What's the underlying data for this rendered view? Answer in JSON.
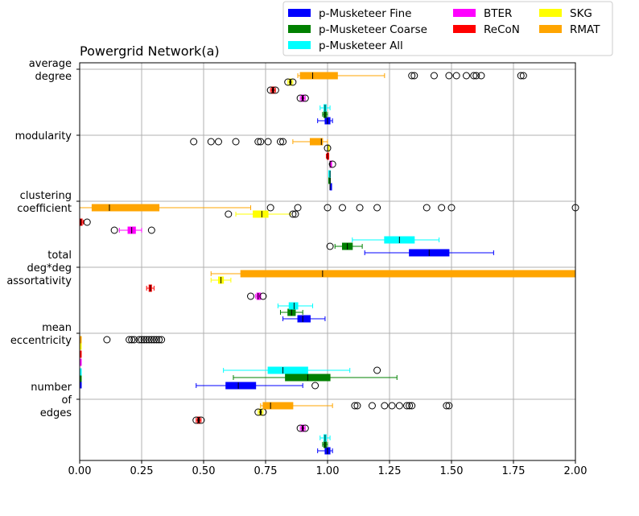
{
  "chart_data": {
    "type": "boxplot",
    "title": "Powergrid Network(a)",
    "xlabel": "",
    "ylabel": "",
    "xlim": [
      0.0,
      2.0
    ],
    "xticks": [
      "0.00",
      "0.25",
      "0.50",
      "0.75",
      "1.00",
      "1.25",
      "1.50",
      "1.75",
      "2.00"
    ],
    "grid": true,
    "legend_position": "top-right, outside above plot",
    "series": [
      {
        "name": "p-Musketeer Fine",
        "color": "#0000ff"
      },
      {
        "name": "p-Musketeer Coarse",
        "color": "#008000"
      },
      {
        "name": "p-Musketeer All",
        "color": "#00ffff"
      },
      {
        "name": "BTER",
        "color": "#ff00ff"
      },
      {
        "name": "ReCoN",
        "color": "#ff0000"
      },
      {
        "name": "SKG",
        "color": "#ffff00"
      },
      {
        "name": "RMAT",
        "color": "#ffa500"
      }
    ],
    "groups": [
      {
        "label": [
          "average",
          "degree"
        ],
        "boxes": [
          {
            "series": "p-Musketeer Fine",
            "whislo": 0.96,
            "q1": 0.99,
            "med": 1.0,
            "q3": 1.01,
            "whishi": 1.02,
            "fliers": []
          },
          {
            "series": "p-Musketeer Coarse",
            "whislo": 0.98,
            "q1": 0.985,
            "med": 0.99,
            "q3": 0.995,
            "whishi": 1.0,
            "fliers": []
          },
          {
            "series": "p-Musketeer All",
            "whislo": 0.97,
            "q1": 0.985,
            "med": 0.99,
            "q3": 0.995,
            "whishi": 1.01,
            "fliers": []
          },
          {
            "series": "BTER",
            "whislo": 0.89,
            "q1": 0.895,
            "med": 0.9,
            "q3": 0.905,
            "whishi": 0.91,
            "fliers": [
              0.89,
              0.91
            ]
          },
          {
            "series": "ReCoN",
            "whislo": 0.77,
            "q1": 0.775,
            "med": 0.78,
            "q3": 0.785,
            "whishi": 0.79,
            "fliers": [
              0.77,
              0.79
            ]
          },
          {
            "series": "SKG",
            "whislo": 0.84,
            "q1": 0.845,
            "med": 0.85,
            "q3": 0.855,
            "whishi": 0.86,
            "fliers": [
              0.84,
              0.86
            ]
          },
          {
            "series": "RMAT",
            "whislo": 0.88,
            "q1": 0.89,
            "med": 0.94,
            "q3": 1.04,
            "whishi": 1.23,
            "fliers": [
              1.34,
              1.35,
              1.43,
              1.49,
              1.52,
              1.56,
              1.59,
              1.6,
              1.62,
              1.78,
              1.79
            ]
          }
        ]
      },
      {
        "label": [
          "modularity"
        ],
        "boxes": [
          {
            "series": "p-Musketeer Fine",
            "whislo": 1.01,
            "q1": 1.01,
            "med": 1.01,
            "q3": 1.015,
            "whishi": 1.015,
            "fliers": []
          },
          {
            "series": "p-Musketeer Coarse",
            "whislo": 1.005,
            "q1": 1.005,
            "med": 1.01,
            "q3": 1.01,
            "whishi": 1.01,
            "fliers": []
          },
          {
            "series": "p-Musketeer All",
            "whislo": 1.005,
            "q1": 1.005,
            "med": 1.01,
            "q3": 1.01,
            "whishi": 1.01,
            "fliers": []
          },
          {
            "series": "BTER",
            "whislo": 1.01,
            "q1": 1.01,
            "med": 1.01,
            "q3": 1.015,
            "whishi": 1.015,
            "fliers": [
              1.02
            ]
          },
          {
            "series": "ReCoN",
            "whislo": 0.995,
            "q1": 0.998,
            "med": 1.0,
            "q3": 1.002,
            "whishi": 1.005,
            "fliers": []
          },
          {
            "series": "SKG",
            "whislo": 1.0,
            "q1": 1.0,
            "med": 1.0,
            "q3": 1.0,
            "whishi": 1.0,
            "fliers": [
              1.0
            ]
          },
          {
            "series": "RMAT",
            "whislo": 0.86,
            "q1": 0.93,
            "med": 0.975,
            "q3": 0.98,
            "whishi": 1.0,
            "fliers": [
              0.46,
              0.53,
              0.56,
              0.63,
              0.72,
              0.73,
              0.76,
              0.81,
              0.82
            ]
          }
        ]
      },
      {
        "label": [
          "clustering",
          "coefficient"
        ],
        "boxes": [
          {
            "series": "p-Musketeer Fine",
            "whislo": 1.15,
            "q1": 1.33,
            "med": 1.41,
            "q3": 1.49,
            "whishi": 1.67,
            "fliers": []
          },
          {
            "series": "p-Musketeer Coarse",
            "whislo": 1.03,
            "q1": 1.06,
            "med": 1.08,
            "q3": 1.1,
            "whishi": 1.14,
            "fliers": [
              1.01
            ]
          },
          {
            "series": "p-Musketeer All",
            "whislo": 1.1,
            "q1": 1.23,
            "med": 1.29,
            "q3": 1.35,
            "whishi": 1.45,
            "fliers": []
          },
          {
            "series": "BTER",
            "whislo": 0.16,
            "q1": 0.195,
            "med": 0.21,
            "q3": 0.225,
            "whishi": 0.25,
            "fliers": [
              0.14,
              0.29
            ]
          },
          {
            "series": "ReCoN",
            "whislo": 0.0,
            "q1": 0.002,
            "med": 0.005,
            "q3": 0.01,
            "whishi": 0.015,
            "fliers": [
              0.03
            ]
          },
          {
            "series": "SKG",
            "whislo": 0.63,
            "q1": 0.7,
            "med": 0.735,
            "q3": 0.76,
            "whishi": 0.85,
            "fliers": [
              0.6,
              0.86,
              0.87
            ]
          },
          {
            "series": "RMAT",
            "whislo": 0.0,
            "q1": 0.05,
            "med": 0.12,
            "q3": 0.32,
            "whishi": 0.69,
            "fliers": [
              0.77,
              0.88,
              1.0,
              1.06,
              1.13,
              1.2,
              1.4,
              1.46,
              1.5,
              2.0
            ]
          }
        ]
      },
      {
        "label": [
          "total",
          "deg*deg",
          "assortativity"
        ],
        "boxes": [
          {
            "series": "p-Musketeer Fine",
            "whislo": 0.82,
            "q1": 0.88,
            "med": 0.9,
            "q3": 0.93,
            "whishi": 0.99,
            "fliers": []
          },
          {
            "series": "p-Musketeer Coarse",
            "whislo": 0.81,
            "q1": 0.84,
            "med": 0.855,
            "q3": 0.87,
            "whishi": 0.9,
            "fliers": []
          },
          {
            "series": "p-Musketeer All",
            "whislo": 0.8,
            "q1": 0.845,
            "med": 0.865,
            "q3": 0.88,
            "whishi": 0.94,
            "fliers": []
          },
          {
            "series": "BTER",
            "whislo": 0.71,
            "q1": 0.715,
            "med": 0.72,
            "q3": 0.73,
            "whishi": 0.73,
            "fliers": [
              0.69,
              0.74
            ]
          },
          {
            "series": "ReCoN",
            "whislo": 0.27,
            "q1": 0.28,
            "med": 0.285,
            "q3": 0.29,
            "whishi": 0.3,
            "fliers": []
          },
          {
            "series": "SKG",
            "whislo": 0.53,
            "q1": 0.56,
            "med": 0.57,
            "q3": 0.58,
            "whishi": 0.61,
            "fliers": []
          },
          {
            "series": "RMAT",
            "whislo": 0.53,
            "q1": 0.65,
            "med": 0.98,
            "q3": 2.0,
            "whishi": 2.0,
            "fliers": []
          }
        ]
      },
      {
        "label": [
          "mean",
          "eccentricity"
        ],
        "boxes": [
          {
            "series": "p-Musketeer Fine",
            "whislo": 0.0,
            "q1": 0.0,
            "med": 0.0,
            "q3": 0.0,
            "whishi": 0.0,
            "fliers": []
          },
          {
            "series": "p-Musketeer Coarse",
            "whislo": 0.0,
            "q1": 0.0,
            "med": 0.0,
            "q3": 0.0,
            "whishi": 0.0,
            "fliers": []
          },
          {
            "series": "p-Musketeer All",
            "whislo": 0.0,
            "q1": 0.0,
            "med": 0.0,
            "q3": 0.0,
            "whishi": 0.0,
            "fliers": []
          },
          {
            "series": "BTER",
            "whislo": 0.0,
            "q1": 0.0,
            "med": 0.0,
            "q3": 0.0,
            "whishi": 0.0,
            "fliers": []
          },
          {
            "series": "ReCoN",
            "whislo": 0.0,
            "q1": 0.0,
            "med": 0.0,
            "q3": 0.0,
            "whishi": 0.0,
            "fliers": []
          },
          {
            "series": "SKG",
            "whislo": 0.0,
            "q1": 0.0,
            "med": 0.0,
            "q3": 0.0,
            "whishi": 0.0,
            "fliers": []
          },
          {
            "series": "RMAT",
            "whislo": 0.0,
            "q1": 0.0,
            "med": 0.0,
            "q3": 0.0,
            "whishi": 0.0,
            "fliers": [
              0.11,
              0.2,
              0.21,
              0.22,
              0.24,
              0.25,
              0.26,
              0.27,
              0.28,
              0.29,
              0.3,
              0.31,
              0.32,
              0.33
            ]
          }
        ]
      },
      {
        "label": [
          "number",
          "of",
          "edges"
        ],
        "boxes": [
          {
            "series": "p-Musketeer Fine",
            "whislo": 0.96,
            "q1": 0.99,
            "med": 1.0,
            "q3": 1.01,
            "whishi": 1.02,
            "fliers": []
          },
          {
            "series": "p-Musketeer Coarse",
            "whislo": 0.98,
            "q1": 0.985,
            "med": 0.99,
            "q3": 0.995,
            "whishi": 1.0,
            "fliers": []
          },
          {
            "series": "p-Musketeer All",
            "whislo": 0.97,
            "q1": 0.985,
            "med": 0.99,
            "q3": 0.995,
            "whishi": 1.01,
            "fliers": []
          },
          {
            "series": "BTER",
            "whislo": 0.89,
            "q1": 0.895,
            "med": 0.9,
            "q3": 0.905,
            "whishi": 0.91,
            "fliers": [
              0.89,
              0.91
            ]
          },
          {
            "series": "ReCoN",
            "whislo": 0.47,
            "q1": 0.475,
            "med": 0.48,
            "q3": 0.485,
            "whishi": 0.49,
            "fliers": [
              0.47,
              0.49
            ]
          },
          {
            "series": "SKG",
            "whislo": 0.72,
            "q1": 0.725,
            "med": 0.73,
            "q3": 0.735,
            "whishi": 0.74,
            "fliers": [
              0.72,
              0.74
            ]
          },
          {
            "series": "RMAT",
            "whislo": 0.73,
            "q1": 0.74,
            "med": 0.77,
            "q3": 0.86,
            "whishi": 1.02,
            "fliers": [
              1.11,
              1.12,
              1.18,
              1.23,
              1.26,
              1.29,
              1.32,
              1.33,
              1.34,
              1.48,
              1.49
            ]
          }
        ]
      },
      {
        "label": [
          "number",
          "of",
          "edges"
        ],
        "part": "upper",
        "boxes": [
          {
            "series": "p-Musketeer Fine",
            "whislo": 0.47,
            "q1": 0.59,
            "med": 0.64,
            "q3": 0.71,
            "whishi": 0.9,
            "fliers": [
              0.95
            ]
          },
          {
            "series": "p-Musketeer Coarse",
            "whislo": 0.62,
            "q1": 0.83,
            "med": 0.92,
            "q3": 1.01,
            "whishi": 1.28,
            "fliers": []
          },
          {
            "series": "p-Musketeer All",
            "whislo": 0.58,
            "q1": 0.76,
            "med": 0.82,
            "q3": 0.92,
            "whishi": 1.09,
            "fliers": [
              1.2
            ]
          }
        ]
      }
    ]
  }
}
